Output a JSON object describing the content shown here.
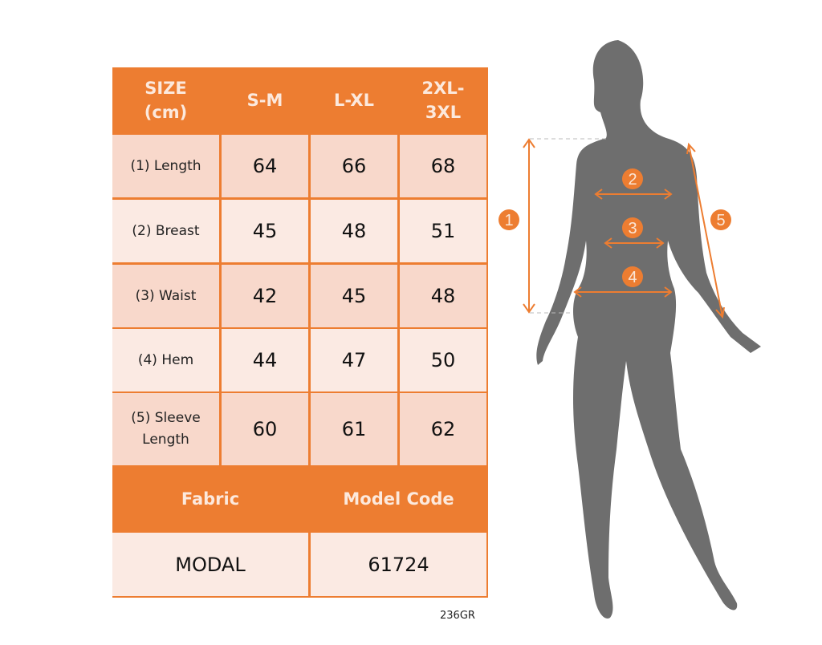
{
  "table": {
    "header": [
      "SIZE (cm)",
      "S-M",
      "L-XL",
      "2XL-3XL"
    ],
    "rows": [
      {
        "label": "(1) Length",
        "values": [
          "64",
          "66",
          "68"
        ]
      },
      {
        "label": "(2) Breast",
        "values": [
          "45",
          "48",
          "51"
        ]
      },
      {
        "label": "(3) Waist",
        "values": [
          "42",
          "45",
          "48"
        ]
      },
      {
        "label": "(4) Hem",
        "values": [
          "44",
          "47",
          "50"
        ]
      },
      {
        "label": "(5) Sleeve Length",
        "values": [
          "60",
          "61",
          "62"
        ]
      }
    ],
    "info_headers": [
      "Fabric",
      "Model Code"
    ],
    "info_values": [
      "MODAL",
      "61724"
    ]
  },
  "product_code": "236GR",
  "figure": {
    "markers": [
      "1",
      "2",
      "3",
      "4",
      "5"
    ]
  },
  "colors": {
    "accent": "#ED7D31",
    "row_dark": "#F8D8CB",
    "row_light": "#FBEAE3",
    "silhouette": "#6E6E6E"
  }
}
